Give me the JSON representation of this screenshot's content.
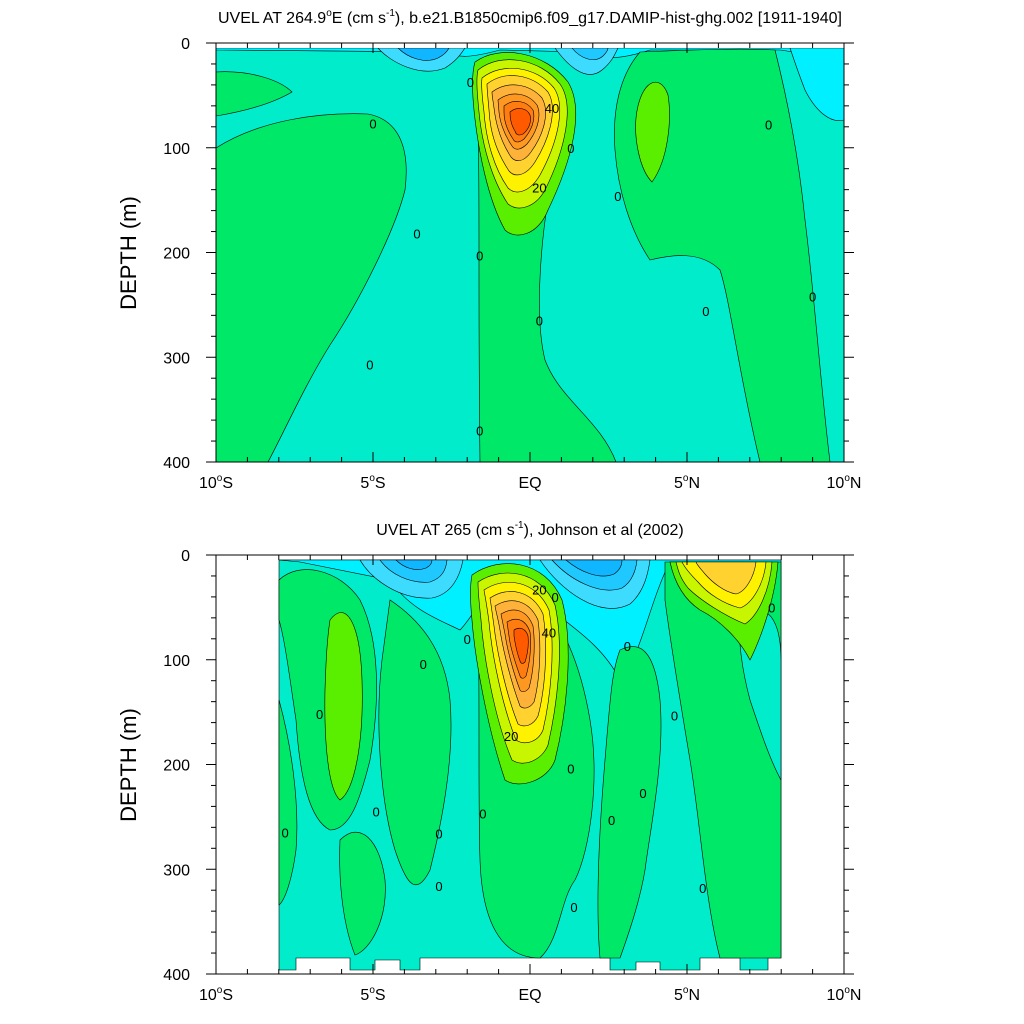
{
  "colors": {
    "levels": [
      -15,
      -10,
      -5,
      0,
      5,
      10,
      15,
      20,
      25,
      30,
      35,
      40,
      45
    ],
    "fills": [
      "#10b6ff",
      "#1fc9ff",
      "#3ddcff",
      "#00f0ff",
      "#00eccb",
      "#00e868",
      "#5aef00",
      "#c8f500",
      "#fff200",
      "#ffd230",
      "#ffb23a",
      "#ff9820",
      "#ff7c10",
      "#ff5a00"
    ],
    "line": "#000000"
  },
  "chart_data": [
    {
      "type": "contour",
      "title": "UVEL AT 264.9°E (cm s-1), b.e21.B1850cmip6.f09_g17.DAMIP-hist-ghg.002 [1911-1940]",
      "title_parts": {
        "a": "UVEL AT 264.9",
        "deg": "o",
        "b": "E (cm s",
        "sup": "-1",
        "c": "), b.e21.B1850cmip6.f09_g17.DAMIP-hist-ghg.002 [1911-1940]"
      },
      "xlabel": "",
      "ylabel": "DEPTH (m)",
      "x_ticks": [
        {
          "value": -10,
          "num": "10",
          "deg": "o",
          "hem": "S"
        },
        {
          "value": -5,
          "num": "5",
          "deg": "o",
          "hem": "S"
        },
        {
          "value": 0,
          "num": "EQ",
          "deg": "",
          "hem": ""
        },
        {
          "value": 5,
          "num": "5",
          "deg": "o",
          "hem": "N"
        },
        {
          "value": 10,
          "num": "10",
          "deg": "o",
          "hem": "N"
        }
      ],
      "y_ticks": [
        0,
        100,
        200,
        300,
        400
      ],
      "xlim": [
        -10,
        10
      ],
      "ylim": [
        0,
        400
      ],
      "contour_labels": [
        {
          "text": "0",
          "lat": -1.9,
          "depth": 37
        },
        {
          "text": "40",
          "lat": 0.7,
          "depth": 62
        },
        {
          "text": "20",
          "lat": 0.3,
          "depth": 138
        },
        {
          "text": "0",
          "lat": -5.0,
          "depth": 77
        },
        {
          "text": "0",
          "lat": 1.3,
          "depth": 100
        },
        {
          "text": "0",
          "lat": 2.8,
          "depth": 146
        },
        {
          "text": "0",
          "lat": 7.6,
          "depth": 78
        },
        {
          "text": "0",
          "lat": -3.6,
          "depth": 182
        },
        {
          "text": "0",
          "lat": -1.6,
          "depth": 203
        },
        {
          "text": "0",
          "lat": 5.6,
          "depth": 256
        },
        {
          "text": "0",
          "lat": 9.0,
          "depth": 242
        },
        {
          "text": "0",
          "lat": 0.3,
          "depth": 265
        },
        {
          "text": "0",
          "lat": -5.1,
          "depth": 307
        },
        {
          "text": "0",
          "lat": -1.6,
          "depth": 370
        }
      ]
    },
    {
      "type": "contour",
      "title": "UVEL AT 265 (cm s-1), Johnson et al (2002)",
      "title_parts": {
        "a": "UVEL AT 265 (cm s",
        "deg": "",
        "b": "",
        "sup": "-1",
        "c": "), Johnson et al (2002)"
      },
      "xlabel": "",
      "ylabel": "DEPTH (m)",
      "x_ticks": [
        {
          "value": -10,
          "num": "10",
          "deg": "o",
          "hem": "S"
        },
        {
          "value": -5,
          "num": "5",
          "deg": "o",
          "hem": "S"
        },
        {
          "value": 0,
          "num": "EQ",
          "deg": "",
          "hem": ""
        },
        {
          "value": 5,
          "num": "5",
          "deg": "o",
          "hem": "N"
        },
        {
          "value": 10,
          "num": "10",
          "deg": "o",
          "hem": "N"
        }
      ],
      "y_ticks": [
        0,
        100,
        200,
        300,
        400
      ],
      "xlim": [
        -10,
        10
      ],
      "ylim": [
        0,
        400
      ],
      "contour_labels": [
        {
          "text": "20",
          "lat": 0.3,
          "depth": 33
        },
        {
          "text": "0",
          "lat": 0.8,
          "depth": 40
        },
        {
          "text": "40",
          "lat": 0.6,
          "depth": 74
        },
        {
          "text": "0",
          "lat": -2.0,
          "depth": 80
        },
        {
          "text": "0",
          "lat": -3.4,
          "depth": 104
        },
        {
          "text": "0",
          "lat": 3.1,
          "depth": 87
        },
        {
          "text": "0",
          "lat": 7.7,
          "depth": 50
        },
        {
          "text": "20",
          "lat": -0.6,
          "depth": 173
        },
        {
          "text": "0",
          "lat": -6.7,
          "depth": 152
        },
        {
          "text": "0",
          "lat": 4.6,
          "depth": 153
        },
        {
          "text": "0",
          "lat": 1.3,
          "depth": 204
        },
        {
          "text": "0",
          "lat": 3.6,
          "depth": 227
        },
        {
          "text": "0",
          "lat": -4.9,
          "depth": 245
        },
        {
          "text": "0",
          "lat": -1.5,
          "depth": 247
        },
        {
          "text": "0",
          "lat": 2.6,
          "depth": 253
        },
        {
          "text": "0",
          "lat": -7.8,
          "depth": 265
        },
        {
          "text": "0",
          "lat": -2.9,
          "depth": 266
        },
        {
          "text": "0",
          "lat": -2.9,
          "depth": 316
        },
        {
          "text": "0",
          "lat": 5.5,
          "depth": 318
        },
        {
          "text": "0",
          "lat": 1.4,
          "depth": 336
        }
      ]
    }
  ]
}
